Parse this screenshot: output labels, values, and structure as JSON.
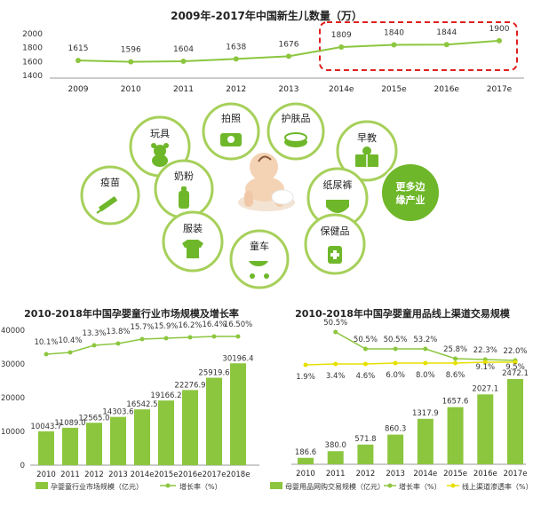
{
  "chart_data": [
    {
      "type": "line",
      "title": "2009年-2017年中国新生儿数量（万）",
      "categories": [
        "2009",
        "2010",
        "2011",
        "2012",
        "2013",
        "2014e",
        "2015e",
        "2016e",
        "2017e"
      ],
      "values": [
        1615,
        1596,
        1604,
        1638,
        1676,
        1809,
        1840,
        1844,
        1900
      ],
      "yticks": [
        1400,
        1600,
        1800,
        2000
      ],
      "ylim": [
        1400,
        2000
      ],
      "highlight": [
        "2014e",
        "2017e"
      ],
      "line_color": "#8cc63f",
      "highlight_color": "#e02020"
    },
    {
      "type": "bar",
      "title": "2010-2018年中国孕婴童行业市场规模及增长率",
      "categories": [
        "2010",
        "2011",
        "2012",
        "2013",
        "2014e",
        "2015e",
        "2016e",
        "2017e",
        "2018e"
      ],
      "series": [
        {
          "name": "孕婴童行业市场规模（亿元）",
          "type": "bar",
          "values": [
            10043.7,
            11089.0,
            12565.0,
            14303.6,
            16542.5,
            19166.2,
            22276.9,
            25919.6,
            30196.4
          ]
        },
        {
          "name": "增长率（%）",
          "type": "line",
          "values": [
            10.1,
            10.4,
            13.3,
            13.8,
            15.7,
            15.9,
            16.2,
            16.4,
            16.5
          ],
          "labels": [
            "10.1%",
            "10.4%",
            "13.3%",
            "13.8%",
            "15.7%",
            "15.9%",
            "16.2%",
            "16.4%",
            "16.50%"
          ]
        }
      ],
      "yticks": [
        0,
        10000,
        20000,
        30000,
        40000
      ],
      "ylim": [
        0,
        40000
      ]
    },
    {
      "type": "bar",
      "title": "2010-2018年中国孕婴童用品线上渠道交易规模",
      "categories": [
        "2010",
        "2011",
        "2012",
        "2013",
        "2014e",
        "2015e",
        "2016e",
        "2017e"
      ],
      "series": [
        {
          "name": "母婴用品网购交易规模（亿元）",
          "type": "bar",
          "values": [
            186.6,
            380.0,
            571.8,
            860.3,
            1317.9,
            1657.6,
            2027.1,
            2472.1
          ]
        },
        {
          "name": "增长率（%）",
          "type": "line",
          "values": [
            null,
            50.5,
            50.5,
            50.5,
            53.2,
            25.8,
            22.3,
            22.0
          ],
          "labels": [
            "",
            "50.5%",
            "50.5%",
            "50.5%",
            "53.2%",
            "25.8%",
            "22.3%",
            "22.0%"
          ]
        },
        {
          "name": "线上渠道渗透率（%）",
          "type": "line",
          "values": [
            1.9,
            3.4,
            4.6,
            6.0,
            8.0,
            8.6,
            9.1,
            9.5
          ],
          "labels": [
            "1.9%",
            "3.4%",
            "4.6%",
            "6.0%",
            "8.0%",
            "8.6%",
            "9.1%",
            "9.5%"
          ]
        }
      ]
    }
  ],
  "diagram": {
    "items": [
      "拍照",
      "护肤品",
      "玩具",
      "早教",
      "疫苗",
      "奶粉",
      "纸尿裤",
      "更多边缘产业",
      "服装",
      "保健品",
      "童车"
    ],
    "highlight_label": [
      "更多边",
      "缘产业"
    ],
    "green": "#6fb72a",
    "dark_green": "#4a9d20",
    "light_green": "#a6d05a"
  }
}
